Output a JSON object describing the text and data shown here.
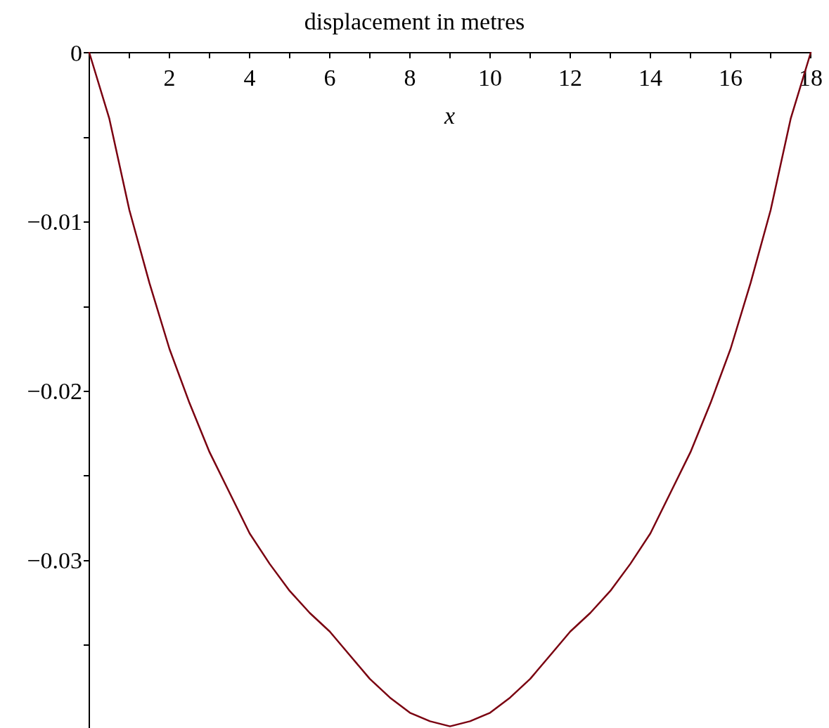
{
  "chart_data": {
    "type": "line",
    "title": "displacement in metres",
    "xlabel": "x",
    "x": [
      0,
      0.5,
      1,
      1.5,
      2,
      2.5,
      3,
      3.5,
      4,
      4.5,
      5,
      5.5,
      6,
      6.5,
      7,
      7.5,
      8,
      8.5,
      9,
      9.5,
      10,
      10.5,
      11,
      11.5,
      12,
      12.5,
      13,
      13.5,
      14,
      14.5,
      15,
      15.5,
      16,
      16.5,
      17,
      17.5,
      18
    ],
    "series": [
      {
        "color": "#7a0010",
        "values": [
          0,
          -0.0039,
          -0.0093,
          -0.0136,
          -0.0175,
          -0.0207,
          -0.0236,
          -0.026,
          -0.0284,
          -0.0302,
          -0.0318,
          -0.0331,
          -0.0342,
          -0.0356,
          -0.037,
          -0.0381,
          -0.039,
          -0.0395,
          -0.0398,
          -0.0395,
          -0.039,
          -0.0381,
          -0.037,
          -0.0356,
          -0.0342,
          -0.0331,
          -0.0318,
          -0.0302,
          -0.0284,
          -0.026,
          -0.0236,
          -0.0207,
          -0.0175,
          -0.0136,
          -0.0093,
          -0.0039,
          0
        ]
      }
    ],
    "xlim": [
      0,
      18
    ],
    "xticks": [
      {
        "value": 1,
        "label": null
      },
      2,
      {
        "value": 3,
        "label": null
      },
      4,
      {
        "value": 5,
        "label": null
      },
      6,
      {
        "value": 7,
        "label": null
      },
      8,
      {
        "value": 9,
        "label": null
      },
      10,
      {
        "value": 11,
        "label": null
      },
      12,
      {
        "value": 13,
        "label": null
      },
      14,
      {
        "value": 15,
        "label": null
      },
      16,
      {
        "value": 17,
        "label": null
      },
      18
    ],
    "ylim": [
      -0.0399,
      0
    ],
    "yticks": [
      0,
      {
        "value": -0.005,
        "label": null
      },
      {
        "value": -0.01,
        "label": "−0.01"
      },
      {
        "value": -0.015,
        "label": null
      },
      {
        "value": -0.02,
        "label": "−0.02"
      },
      {
        "value": -0.025,
        "label": null
      },
      {
        "value": -0.03,
        "label": "−0.03"
      },
      {
        "value": -0.035,
        "label": null
      }
    ],
    "grid": false,
    "marker": "none",
    "line_style": "solid"
  }
}
